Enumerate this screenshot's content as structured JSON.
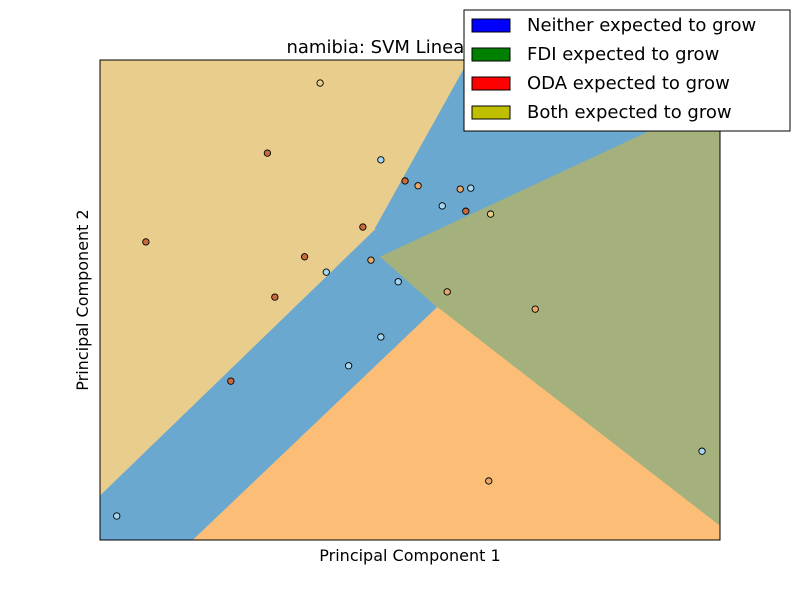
{
  "chart_data": {
    "type": "scatter",
    "title": "namibia: SVM Linear-Kernel",
    "xlabel": "Principal Component 1",
    "ylabel": "Principal Component 2",
    "xlim": [
      0,
      100
    ],
    "ylim": [
      0,
      100
    ],
    "ticks": false,
    "grid": false,
    "legend_placement": "top-right",
    "legend": [
      {
        "label": "Neither expected to grow",
        "color": "#0000ff"
      },
      {
        "label": "FDI expected to grow",
        "color": "#008000"
      },
      {
        "label": "ODA expected to grow",
        "color": "#ff0000"
      },
      {
        "label": "Both expected to grow",
        "color": "#bfbf00"
      }
    ],
    "regions": [
      {
        "class": "Both expected to grow",
        "color": "#e8cd8c",
        "polygon": [
          [
            0,
            100
          ],
          [
            59.5,
            100
          ],
          [
            44.4,
            65
          ],
          [
            44.4,
            64.7
          ],
          [
            0,
            9.2
          ]
        ]
      },
      {
        "class": "Neither expected to grow",
        "color": "#6aa8d0",
        "polygon": [
          [
            0,
            9.2
          ],
          [
            44.4,
            64.7
          ],
          [
            44.4,
            65
          ],
          [
            59.5,
            100
          ],
          [
            100,
            100
          ],
          [
            100,
            92
          ],
          [
            45.2,
            59
          ],
          [
            54.4,
            48.5
          ],
          [
            15,
            0
          ],
          [
            0,
            0
          ]
        ]
      },
      {
        "class": "FDI expected to grow",
        "color": "#a4b17c",
        "polygon": [
          [
            45.2,
            59
          ],
          [
            100,
            92
          ],
          [
            100,
            2.9
          ],
          [
            54.4,
            48.5
          ]
        ]
      },
      {
        "class": "ODA expected to grow",
        "color": "#fcbe77",
        "polygon": [
          [
            15,
            0
          ],
          [
            54.4,
            48.5
          ],
          [
            100,
            2.9
          ],
          [
            100,
            0
          ]
        ]
      }
    ],
    "points": [
      {
        "x": 35.5,
        "y": 95.2,
        "color": "#e8cd8c"
      },
      {
        "x": 27.0,
        "y": 80.6,
        "color": "#c86a3c"
      },
      {
        "x": 45.3,
        "y": 79.2,
        "color": "#a6d7f0"
      },
      {
        "x": 49.2,
        "y": 74.8,
        "color": "#c86a3c"
      },
      {
        "x": 51.3,
        "y": 73.8,
        "color": "#e8a86a"
      },
      {
        "x": 58.1,
        "y": 73.1,
        "color": "#e8a86a"
      },
      {
        "x": 59.8,
        "y": 73.3,
        "color": "#a6d7f0"
      },
      {
        "x": 55.2,
        "y": 69.6,
        "color": "#a6d7f0"
      },
      {
        "x": 59.0,
        "y": 68.5,
        "color": "#c86a3c"
      },
      {
        "x": 63.0,
        "y": 67.9,
        "color": "#e8cd8c"
      },
      {
        "x": 42.4,
        "y": 65.2,
        "color": "#c86a3c"
      },
      {
        "x": 7.4,
        "y": 62.1,
        "color": "#c86a3c"
      },
      {
        "x": 33.0,
        "y": 59.0,
        "color": "#c86a3c"
      },
      {
        "x": 43.7,
        "y": 58.3,
        "color": "#e8a86a"
      },
      {
        "x": 36.5,
        "y": 55.8,
        "color": "#a6d7f0"
      },
      {
        "x": 48.1,
        "y": 53.8,
        "color": "#a6d7f0"
      },
      {
        "x": 56.0,
        "y": 51.7,
        "color": "#e8a86a"
      },
      {
        "x": 28.2,
        "y": 50.6,
        "color": "#c86a3c"
      },
      {
        "x": 70.2,
        "y": 48.1,
        "color": "#e8a86a"
      },
      {
        "x": 45.3,
        "y": 42.3,
        "color": "#a6d7f0"
      },
      {
        "x": 40.1,
        "y": 36.3,
        "color": "#a6d7f0"
      },
      {
        "x": 21.1,
        "y": 33.1,
        "color": "#c86a3c"
      },
      {
        "x": 97.1,
        "y": 18.5,
        "color": "#a6d7f0"
      },
      {
        "x": 62.7,
        "y": 12.3,
        "color": "#e8a86a"
      },
      {
        "x": 2.7,
        "y": 5.0,
        "color": "#a6d7f0"
      }
    ]
  }
}
